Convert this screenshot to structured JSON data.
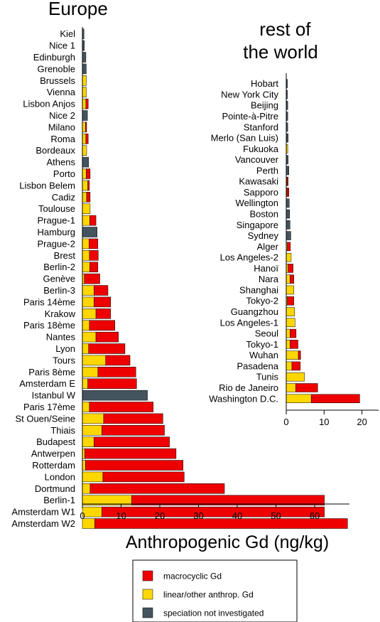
{
  "chart_data": [
    {
      "type": "bar",
      "orientation": "horizontal",
      "stacked": true,
      "title": "Europe",
      "xlabel": "Anthropogenic Gd (ng/kg)",
      "xlim": [
        0,
        70
      ],
      "xticks": [
        "0",
        "10",
        "20",
        "30",
        "40",
        "50",
        "60"
      ],
      "categories": [
        "Kiel",
        "Nice 1",
        "Edinburgh",
        "Grenoble",
        "Brussels",
        "Vienna",
        "Lisbon Anjos",
        "Nice 2",
        "Milano",
        "Roma",
        "Bordeaux",
        "Athens",
        "Porto",
        "Lisbon Belem",
        "Cadiz",
        "Toulouse",
        "Prague-1",
        "Hamburg",
        "Prague-2",
        "Brest",
        "Berlin-2",
        "Genève",
        "Berlin-3",
        "Paris 14ème",
        "Krakow",
        "Paris 18ème",
        "Nantes",
        "Lyon",
        "Tours",
        "Paris 8ème",
        "Amsterdam E",
        "Istanbul W",
        "Paris 17ème",
        "St Ouen/Seine",
        "Thiais",
        "Budapest",
        "Antwerpen",
        "Rotterdam",
        "London",
        "Dortmund",
        "Berlin-1",
        "Amsterdam W1",
        "Amsterdam W2"
      ],
      "series": [
        {
          "name": "linear/other anthrop. Gd",
          "color": "#ffd700",
          "values": [
            0,
            0,
            0,
            0,
            1.0,
            1.0,
            0.9,
            0,
            0.8,
            0.9,
            1.1,
            0,
            1.0,
            1.4,
            1.1,
            2.0,
            1.9,
            0,
            1.7,
            1.8,
            1.9,
            0.5,
            3.0,
            3.0,
            3.5,
            1.8,
            3.5,
            1.6,
            6.0,
            4.0,
            1.4,
            0,
            1.8,
            5.5,
            5.0,
            3.0,
            0.6,
            0.8,
            5.3,
            2.0,
            12.7,
            5.0,
            3.2
          ]
        },
        {
          "name": "macrocyclic Gd",
          "color": "#ee0000",
          "values": [
            0,
            0,
            0,
            0,
            0,
            0,
            0.6,
            0,
            0.3,
            0.6,
            0,
            0,
            1.0,
            0.4,
            0.9,
            0,
            1.6,
            0,
            2.3,
            2.3,
            2.1,
            4.0,
            3.6,
            4.3,
            3.8,
            6.6,
            5.8,
            9.4,
            6.3,
            9.8,
            12.6,
            0,
            16.5,
            15.3,
            16.2,
            19.5,
            23.6,
            25.2,
            21.0,
            34.7,
            49.8,
            57.5,
            65.3
          ]
        },
        {
          "name": "speciation not investigated",
          "color": "#44545e",
          "values": [
            0.4,
            0.5,
            0.9,
            1.0,
            0,
            0,
            0,
            1.3,
            0,
            0,
            0,
            1.6,
            0,
            0,
            0,
            0,
            0,
            3.8,
            0,
            0,
            0,
            0,
            0,
            0,
            0,
            0,
            0,
            0,
            0,
            0,
            0,
            16.8,
            0,
            0,
            0,
            0,
            0,
            0,
            0,
            0,
            0,
            0,
            0
          ]
        }
      ]
    },
    {
      "type": "bar",
      "orientation": "horizontal",
      "stacked": true,
      "title": "rest of the world",
      "title_lines": [
        "rest of",
        "the world"
      ],
      "xlim": [
        0,
        25
      ],
      "xticks": [
        "0",
        "10",
        "20"
      ],
      "categories": [
        "Hobart",
        "New York City",
        "Beijing",
        "Pointe-à-Pitre",
        "Stanford",
        "Merlo (San Luis)",
        "Fukuoka",
        "Vancouver",
        "Perth",
        "Kawasaki",
        "Sapporo",
        "Wellington",
        "Boston",
        "Singapore",
        "Sydney",
        "Alger",
        "Los Angeles-2",
        "Hanoï",
        "Nara",
        "Shanghai",
        "Tokyo-2",
        "Guangzhou",
        "Los Angeles-1",
        "Seoul",
        "Tokyo-1",
        "Wuhan",
        "Pasadena",
        "Tunis",
        "Rio de Janeiro",
        "Washington D.C."
      ],
      "series": [
        {
          "name": "linear/other anthrop. Gd",
          "color": "#ffd700",
          "values": [
            0,
            0,
            0,
            0,
            0,
            0,
            0.4,
            0,
            0,
            0.2,
            0.2,
            0,
            0,
            0,
            0,
            0.3,
            1.3,
            0.5,
            1.0,
            2.0,
            0.3,
            2.2,
            2.3,
            1.0,
            1.0,
            3.2,
            1.5,
            4.8,
            2.5,
            6.6
          ]
        },
        {
          "name": "macrocyclic Gd",
          "color": "#ee0000",
          "values": [
            0,
            0,
            0,
            0,
            0,
            0,
            0,
            0,
            0,
            0.3,
            0.5,
            0,
            0,
            0,
            0,
            0.8,
            0,
            1.3,
            1.0,
            0,
            1.7,
            0,
            0,
            1.6,
            2.1,
            0.6,
            2.2,
            0,
            5.8,
            12.8
          ]
        },
        {
          "name": "speciation not investigated",
          "color": "#44545e",
          "values": [
            0.3,
            0.3,
            0.4,
            0.4,
            0.4,
            0.5,
            0,
            0.5,
            0.7,
            0,
            0,
            0.8,
            0.9,
            1.0,
            1.2,
            0,
            0,
            0,
            0,
            0,
            0,
            0,
            0,
            0,
            0,
            0,
            0,
            0,
            0,
            0
          ]
        }
      ]
    }
  ],
  "legend": [
    {
      "label": "macrocyclic Gd",
      "color": "#ee0000"
    },
    {
      "label": "linear/other anthrop. Gd",
      "color": "#ffd700"
    },
    {
      "label": "speciation not investigated",
      "color": "#44545e"
    }
  ]
}
